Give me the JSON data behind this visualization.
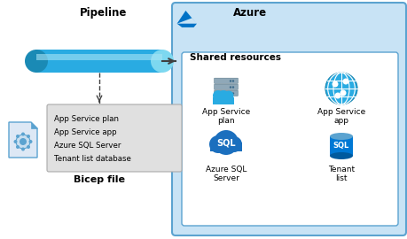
{
  "background_color": "#ffffff",
  "pipeline_label": "Pipeline",
  "azure_label": "Azure",
  "shared_resources_label": "Shared resources",
  "bicep_label": "Bicep file",
  "bicep_items": [
    "App Service plan",
    "App Service app",
    "Azure SQL Server",
    "Tenant list database"
  ],
  "resource_labels": [
    [
      "App Service",
      "plan"
    ],
    [
      "App Service",
      "app"
    ],
    [
      "Azure SQL",
      "Server"
    ],
    [
      "Tenant",
      "list"
    ]
  ],
  "pipe_color": "#29abe2",
  "pipe_dark": "#1a8ab5",
  "pipe_light": "#7dd8f0",
  "azure_box_bg": "#c8e3f5",
  "azure_box_border": "#5ba3d0",
  "shared_box_bg": "#ffffff",
  "shared_box_border": "#5ba3d0",
  "bicep_box_bg": "#e0e0e0",
  "bicep_box_border": "#aaaaaa",
  "arrow_color": "#404040",
  "label_color": "#000000",
  "azure_logo_blue": "#0072c6",
  "azure_logo_light": "#54b4eb",
  "sql_cloud_color": "#1b6fbe",
  "sql_cyl_color": "#0078d4",
  "sql_cyl_top": "#5ba3d0",
  "globe_color": "#29abe2",
  "server_color": "#8fa8b8",
  "server_dark": "#4a6b80"
}
